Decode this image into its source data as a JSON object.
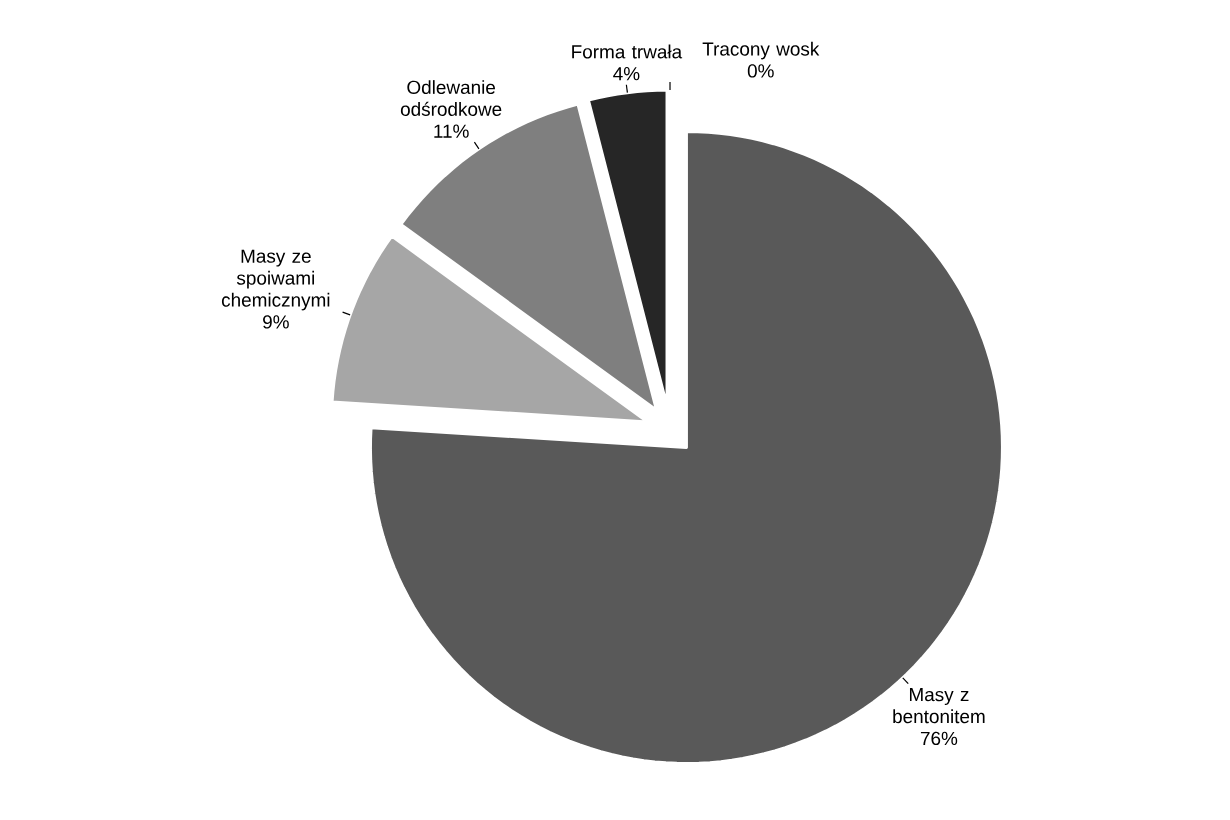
{
  "chart_data": {
    "type": "pie",
    "categories": [
      "Masy z bentonitem",
      "Masy ze spoiwami chemicznymi",
      "Odlewanie odśrodkowe",
      "Forma trwała",
      "Tracony wosk"
    ],
    "values": [
      76,
      9,
      11,
      4,
      0
    ],
    "value_labels": [
      "76%",
      "9%",
      "11%",
      "4%",
      "0%"
    ],
    "colors": [
      "#595959",
      "#a6a6a6",
      "#7f7f7f",
      "#262626",
      "#d9d9d9"
    ]
  }
}
